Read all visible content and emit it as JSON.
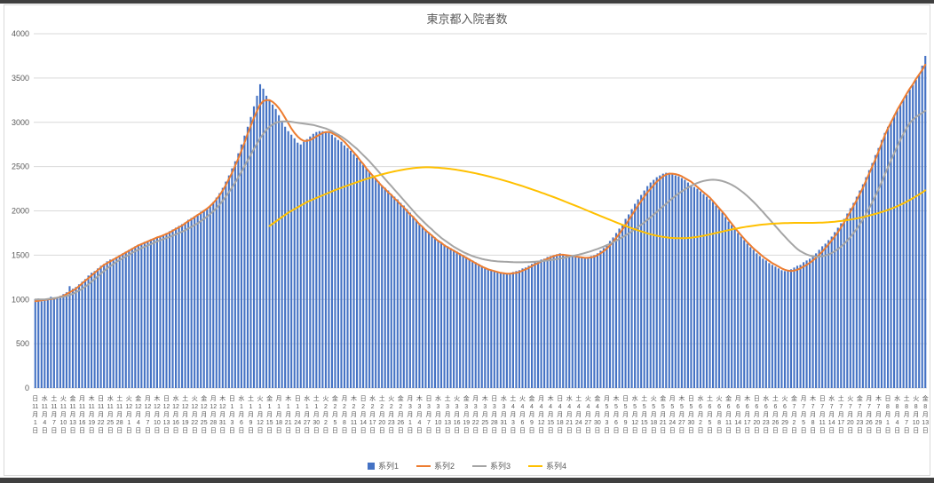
{
  "chart_data": {
    "type": "bar+line",
    "title": "東京都入院者数",
    "ylim": [
      0,
      4000
    ],
    "y_ticks": [
      0,
      500,
      1000,
      1500,
      2000,
      2500,
      3000,
      3500,
      4000
    ],
    "x_start_weekday": "日",
    "weekday_cycle": [
      "日",
      "月",
      "火",
      "水",
      "木",
      "金",
      "土"
    ],
    "tick_every_days": 3,
    "x_axis": {
      "month_suffix": "月",
      "day_suffix": "日"
    },
    "months": [
      {
        "month": 11,
        "days": 30
      },
      {
        "month": 12,
        "days": 31
      },
      {
        "month": 1,
        "days": 31
      },
      {
        "month": 2,
        "days": 28
      },
      {
        "month": 3,
        "days": 31
      },
      {
        "month": 4,
        "days": 30
      },
      {
        "month": 5,
        "days": 31
      },
      {
        "month": 6,
        "days": 30
      },
      {
        "month": 7,
        "days": 31
      },
      {
        "month": 8,
        "days": 13
      }
    ],
    "colors": {
      "gridline": "#D9D9D9",
      "axis_text": "#595959",
      "title": "#595959"
    },
    "legend_position": "bottom",
    "grid": true,
    "series": [
      {
        "name": "系列1",
        "type": "bar",
        "color": "#4472C4",
        "values": [
          1000,
          1010,
          980,
          990,
          1000,
          1030,
          1010,
          1020,
          1040,
          1060,
          1080,
          1150,
          1120,
          1140,
          1170,
          1200,
          1230,
          1270,
          1300,
          1320,
          1350,
          1380,
          1400,
          1430,
          1450,
          1460,
          1480,
          1500,
          1520,
          1540,
          1560,
          1580,
          1600,
          1620,
          1630,
          1650,
          1660,
          1680,
          1690,
          1700,
          1720,
          1730,
          1750,
          1770,
          1790,
          1810,
          1830,
          1850,
          1870,
          1900,
          1920,
          1940,
          1960,
          1990,
          2010,
          2030,
          2060,
          2100,
          2150,
          2200,
          2260,
          2330,
          2400,
          2480,
          2560,
          2650,
          2750,
          2850,
          2950,
          3060,
          3180,
          3300,
          3430,
          3380,
          3300,
          3250,
          3200,
          3150,
          3080,
          3010,
          2950,
          2900,
          2860,
          2820,
          2770,
          2750,
          2780,
          2810,
          2840,
          2870,
          2890,
          2900,
          2900,
          2890,
          2880,
          2860,
          2830,
          2800,
          2780,
          2740,
          2710,
          2680,
          2640,
          2600,
          2560,
          2520,
          2480,
          2440,
          2400,
          2360,
          2330,
          2290,
          2260,
          2230,
          2190,
          2160,
          2130,
          2090,
          2060,
          2020,
          1980,
          1940,
          1900,
          1860,
          1820,
          1790,
          1760,
          1730,
          1700,
          1670,
          1640,
          1620,
          1600,
          1580,
          1560,
          1540,
          1520,
          1500,
          1480,
          1460,
          1440,
          1420,
          1400,
          1380,
          1360,
          1340,
          1330,
          1320,
          1310,
          1300,
          1300,
          1290,
          1290,
          1310,
          1320,
          1330,
          1350,
          1360,
          1380,
          1400,
          1420,
          1430,
          1450,
          1460,
          1480,
          1490,
          1500,
          1510,
          1520,
          1510,
          1500,
          1490,
          1480,
          1480,
          1470,
          1470,
          1470,
          1480,
          1490,
          1500,
          1520,
          1550,
          1580,
          1620,
          1660,
          1700,
          1750,
          1800,
          1850,
          1910,
          1960,
          2020,
          2080,
          2130,
          2180,
          2230,
          2280,
          2320,
          2350,
          2380,
          2400,
          2420,
          2430,
          2430,
          2420,
          2400,
          2390,
          2370,
          2350,
          2320,
          2290,
          2270,
          2250,
          2220,
          2190,
          2160,
          2130,
          2100,
          2060,
          2020,
          1980,
          1930,
          1880,
          1840,
          1790,
          1750,
          1710,
          1670,
          1630,
          1590,
          1560,
          1520,
          1490,
          1460,
          1440,
          1410,
          1390,
          1370,
          1350,
          1330,
          1320,
          1330,
          1340,
          1360,
          1380,
          1390,
          1420,
          1440,
          1460,
          1490,
          1520,
          1560,
          1600,
          1630,
          1670,
          1710,
          1760,
          1810,
          1860,
          1910,
          1970,
          2030,
          2090,
          2160,
          2230,
          2300,
          2380,
          2460,
          2540,
          2630,
          2710,
          2800,
          2880,
          2950,
          3010,
          3080,
          3140,
          3200,
          3260,
          3310,
          3370,
          3420,
          3480,
          3540,
          3640,
          3750
        ]
      },
      {
        "name": "系列2",
        "type": "line",
        "color": "#ED7D31",
        "values": [
          980,
          985,
          990,
          995,
          1000,
          1005,
          1010,
          1020,
          1030,
          1040,
          1060,
          1080,
          1100,
          1120,
          1150,
          1180,
          1210,
          1240,
          1270,
          1300,
          1330,
          1360,
          1390,
          1410,
          1430,
          1450,
          1470,
          1490,
          1510,
          1530,
          1550,
          1570,
          1590,
          1610,
          1625,
          1640,
          1655,
          1670,
          1685,
          1700,
          1710,
          1725,
          1740,
          1755,
          1775,
          1795,
          1815,
          1835,
          1860,
          1885,
          1905,
          1930,
          1955,
          1975,
          2000,
          2025,
          2055,
          2090,
          2130,
          2175,
          2230,
          2290,
          2360,
          2430,
          2510,
          2590,
          2680,
          2770,
          2870,
          2960,
          3050,
          3130,
          3200,
          3240,
          3250,
          3250,
          3230,
          3200,
          3160,
          3110,
          3050,
          2990,
          2930,
          2880,
          2840,
          2810,
          2790,
          2790,
          2800,
          2820,
          2840,
          2860,
          2880,
          2890,
          2890,
          2880,
          2860,
          2840,
          2810,
          2780,
          2740,
          2700,
          2660,
          2620,
          2570,
          2530,
          2480,
          2440,
          2400,
          2360,
          2320,
          2280,
          2250,
          2210,
          2180,
          2140,
          2110,
          2070,
          2040,
          2000,
          1960,
          1930,
          1890,
          1850,
          1820,
          1780,
          1750,
          1720,
          1690,
          1660,
          1640,
          1610,
          1590,
          1570,
          1550,
          1530,
          1510,
          1490,
          1470,
          1450,
          1430,
          1410,
          1390,
          1370,
          1355,
          1340,
          1330,
          1320,
          1310,
          1300,
          1295,
          1290,
          1290,
          1295,
          1300,
          1310,
          1325,
          1340,
          1355,
          1375,
          1395,
          1410,
          1430,
          1445,
          1460,
          1475,
          1490,
          1500,
          1505,
          1505,
          1500,
          1495,
          1490,
          1485,
          1480,
          1475,
          1470,
          1470,
          1475,
          1485,
          1500,
          1520,
          1545,
          1575,
          1610,
          1650,
          1695,
          1740,
          1790,
          1840,
          1895,
          1950,
          2005,
          2060,
          2110,
          2160,
          2210,
          2250,
          2290,
          2330,
          2360,
          2390,
          2410,
          2420,
          2420,
          2415,
          2405,
          2390,
          2370,
          2350,
          2330,
          2300,
          2270,
          2240,
          2210,
          2180,
          2150,
          2110,
          2070,
          2030,
          1990,
          1950,
          1900,
          1855,
          1810,
          1765,
          1725,
          1685,
          1645,
          1610,
          1575,
          1545,
          1515,
          1485,
          1460,
          1435,
          1410,
          1390,
          1370,
          1350,
          1335,
          1325,
          1320,
          1325,
          1335,
          1350,
          1370,
          1390,
          1415,
          1440,
          1470,
          1505,
          1540,
          1580,
          1620,
          1665,
          1710,
          1760,
          1815,
          1870,
          1930,
          1990,
          2055,
          2120,
          2190,
          2260,
          2340,
          2420,
          2500,
          2580,
          2670,
          2760,
          2850,
          2930,
          3000,
          3070,
          3140,
          3200,
          3260,
          3320,
          3380,
          3430,
          3490,
          3540,
          3590,
          3650
        ]
      },
      {
        "name": "系列3",
        "type": "line",
        "color": "#A5A5A5",
        "values": [
          1000,
          1000,
          1000,
          1000,
          1005,
          1010,
          1015,
          1020,
          1025,
          1030,
          1040,
          1050,
          1065,
          1080,
          1100,
          1120,
          1145,
          1170,
          1200,
          1230,
          1260,
          1290,
          1320,
          1350,
          1375,
          1400,
          1425,
          1445,
          1465,
          1485,
          1505,
          1525,
          1545,
          1560,
          1580,
          1595,
          1610,
          1625,
          1640,
          1655,
          1670,
          1680,
          1695,
          1705,
          1720,
          1735,
          1750,
          1765,
          1780,
          1800,
          1820,
          1840,
          1860,
          1885,
          1910,
          1935,
          1965,
          1995,
          2030,
          2070,
          2115,
          2160,
          2210,
          2265,
          2320,
          2380,
          2440,
          2505,
          2570,
          2635,
          2700,
          2760,
          2820,
          2870,
          2915,
          2950,
          2975,
          2995,
          3005,
          3010,
          3010,
          3010,
          3005,
          3000,
          2995,
          2990,
          2985,
          2980,
          2975,
          2970,
          2960,
          2950,
          2940,
          2930,
          2915,
          2900,
          2880,
          2860,
          2840,
          2815,
          2790,
          2760,
          2730,
          2700,
          2665,
          2630,
          2595,
          2560,
          2520,
          2480,
          2440,
          2400,
          2360,
          2320,
          2280,
          2240,
          2200,
          2160,
          2120,
          2080,
          2040,
          2000,
          1960,
          1925,
          1890,
          1855,
          1820,
          1790,
          1755,
          1725,
          1695,
          1670,
          1645,
          1620,
          1595,
          1575,
          1555,
          1535,
          1520,
          1505,
          1490,
          1478,
          1468,
          1458,
          1450,
          1444,
          1438,
          1434,
          1430,
          1428,
          1426,
          1425,
          1423,
          1421,
          1420,
          1420,
          1420,
          1421,
          1422,
          1424,
          1426,
          1429,
          1432,
          1436,
          1440,
          1445,
          1450,
          1456,
          1462,
          1468,
          1475,
          1482,
          1490,
          1498,
          1506,
          1515,
          1525,
          1535,
          1546,
          1558,
          1570,
          1583,
          1597,
          1612,
          1628,
          1645,
          1663,
          1682,
          1702,
          1723,
          1745,
          1768,
          1792,
          1817,
          1843,
          1870,
          1898,
          1927,
          1957,
          1988,
          2020,
          2050,
          2080,
          2110,
          2140,
          2168,
          2195,
          2220,
          2243,
          2264,
          2283,
          2300,
          2315,
          2328,
          2338,
          2345,
          2350,
          2352,
          2350,
          2345,
          2337,
          2326,
          2312,
          2295,
          2275,
          2252,
          2226,
          2198,
          2167,
          2134,
          2100,
          2064,
          2026,
          1988,
          1948,
          1908,
          1868,
          1828,
          1788,
          1748,
          1710,
          1672,
          1636,
          1602,
          1570,
          1545,
          1525,
          1508,
          1496,
          1488,
          1484,
          1484,
          1488,
          1496,
          1508,
          1524,
          1544,
          1568,
          1596,
          1628,
          1664,
          1704,
          1748,
          1796,
          1848,
          1904,
          1964,
          2028,
          2096,
          2168,
          2244,
          2324,
          2408,
          2490,
          2570,
          2650,
          2725,
          2800,
          2870,
          2935,
          2990,
          3030,
          3060,
          3085,
          3105,
          3130
        ]
      },
      {
        "name": "系列4",
        "type": "line",
        "color": "#FFC000",
        "start_index": 75,
        "values": [
          1830,
          1855,
          1880,
          1905,
          1930,
          1955,
          1980,
          2000,
          2020,
          2040,
          2060,
          2080,
          2100,
          2115,
          2130,
          2145,
          2160,
          2175,
          2190,
          2205,
          2220,
          2235,
          2248,
          2261,
          2274,
          2287,
          2300,
          2312,
          2324,
          2336,
          2348,
          2360,
          2371,
          2382,
          2392,
          2402,
          2412,
          2421,
          2430,
          2438,
          2446,
          2453,
          2460,
          2466,
          2472,
          2477,
          2482,
          2486,
          2489,
          2491,
          2492,
          2492,
          2491,
          2489,
          2487,
          2484,
          2481,
          2477,
          2473,
          2468,
          2463,
          2457,
          2451,
          2445,
          2438,
          2431,
          2424,
          2416,
          2408,
          2400,
          2391,
          2382,
          2373,
          2364,
          2354,
          2344,
          2334,
          2324,
          2313,
          2302,
          2291,
          2280,
          2268,
          2256,
          2244,
          2232,
          2220,
          2207,
          2194,
          2181,
          2168,
          2155,
          2142,
          2128,
          2114,
          2100,
          2086,
          2072,
          2058,
          2044,
          2030,
          2015,
          2000,
          1986,
          1971,
          1957,
          1942,
          1928,
          1913,
          1899,
          1885,
          1871,
          1857,
          1843,
          1830,
          1817,
          1804,
          1792,
          1780,
          1768,
          1757,
          1746,
          1736,
          1727,
          1719,
          1712,
          1706,
          1701,
          1697,
          1694,
          1692,
          1691,
          1691,
          1692,
          1694,
          1697,
          1701,
          1706,
          1712,
          1719,
          1726,
          1734,
          1742,
          1750,
          1758,
          1766,
          1774,
          1782,
          1790,
          1797,
          1804,
          1811,
          1817,
          1823,
          1828,
          1833,
          1838,
          1842,
          1846,
          1849,
          1852,
          1855,
          1857,
          1859,
          1861,
          1862,
          1863,
          1864,
          1865,
          1865,
          1865,
          1865,
          1865,
          1865,
          1865,
          1866,
          1867,
          1868,
          1870,
          1872,
          1875,
          1878,
          1882,
          1886,
          1891,
          1896,
          1902,
          1908,
          1915,
          1922,
          1930,
          1938,
          1947,
          1956,
          1966,
          1976,
          1987,
          1998,
          2010,
          2023,
          2037,
          2052,
          2068,
          2085,
          2103,
          2122,
          2142,
          2163,
          2185,
          2208,
          2232
        ]
      }
    ]
  }
}
